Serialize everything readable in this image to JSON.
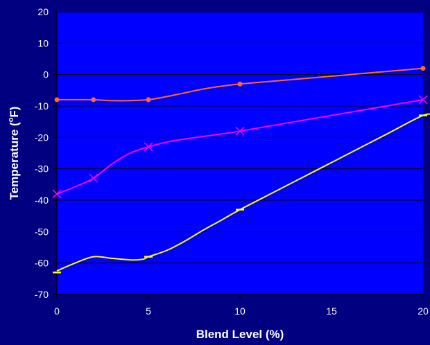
{
  "chart_data": {
    "type": "line",
    "title": "",
    "xlabel": "Blend Level (%)",
    "ylabel_prefix": "Temperature (",
    "ylabel_sup": "o",
    "ylabel_suffix": "F)",
    "xlim": [
      0,
      20
    ],
    "ylim": [
      -70,
      20
    ],
    "x_ticks": [
      0,
      5,
      10,
      15,
      20
    ],
    "y_ticks": [
      20,
      10,
      0,
      -10,
      -20,
      -30,
      -40,
      -50,
      -60,
      -70
    ],
    "grid": "horizontal",
    "legend": "none",
    "colors": {
      "background": "#000080",
      "plot_area": "#0000ff",
      "gridline": "#000000",
      "text": "#ffffff"
    },
    "series": [
      {
        "color": "#ff6a2a",
        "marker": "dot",
        "points": [
          {
            "x": 0,
            "y": -8
          },
          {
            "x": 2,
            "y": -8
          },
          {
            "x": 5,
            "y": -8
          },
          {
            "x": 10,
            "y": -3
          },
          {
            "x": 20,
            "y": 2
          }
        ],
        "curve": [
          [
            0,
            -8
          ],
          [
            1,
            -8
          ],
          [
            2,
            -8
          ],
          [
            3,
            -8.3
          ],
          [
            4,
            -8.3
          ],
          [
            5,
            -8
          ],
          [
            6,
            -7
          ],
          [
            7,
            -5.8
          ],
          [
            8,
            -4.6
          ],
          [
            9,
            -3.7
          ],
          [
            10,
            -3
          ],
          [
            12,
            -2
          ],
          [
            14,
            -1
          ],
          [
            16,
            0
          ],
          [
            18,
            1
          ],
          [
            20,
            2
          ]
        ]
      },
      {
        "color": "#ff00ff",
        "marker": "x",
        "points": [
          {
            "x": 0,
            "y": -38
          },
          {
            "x": 2,
            "y": -33
          },
          {
            "x": 5,
            "y": -23
          },
          {
            "x": 10,
            "y": -18
          },
          {
            "x": 20,
            "y": -8
          }
        ],
        "curve": [
          [
            0,
            -38
          ],
          [
            1,
            -35.7
          ],
          [
            2,
            -33
          ],
          [
            3,
            -28.5
          ],
          [
            4,
            -25
          ],
          [
            5,
            -23
          ],
          [
            6,
            -21.5
          ],
          [
            7,
            -20.5
          ],
          [
            8,
            -19.7
          ],
          [
            9,
            -18.9
          ],
          [
            10,
            -18
          ],
          [
            12,
            -16
          ],
          [
            14,
            -14
          ],
          [
            16,
            -12
          ],
          [
            18,
            -10
          ],
          [
            20,
            -8
          ]
        ]
      },
      {
        "color": "#ffff00",
        "marker": "dash",
        "points": [
          {
            "x": 0,
            "y": -63
          },
          {
            "x": 5,
            "y": -58
          },
          {
            "x": 10,
            "y": -43
          },
          {
            "x": 20,
            "y": -13
          }
        ],
        "curve": [
          [
            0,
            -62.5
          ],
          [
            1,
            -60
          ],
          [
            2,
            -58
          ],
          [
            3,
            -58.5
          ],
          [
            4,
            -59
          ],
          [
            4.7,
            -58.8
          ],
          [
            5,
            -58
          ],
          [
            6,
            -56
          ],
          [
            7,
            -53
          ],
          [
            8,
            -49.5
          ],
          [
            9,
            -46.3
          ],
          [
            10,
            -43
          ],
          [
            12,
            -37
          ],
          [
            14,
            -31
          ],
          [
            16,
            -25
          ],
          [
            18,
            -19
          ],
          [
            20,
            -13
          ],
          [
            20.6,
            -13
          ]
        ]
      }
    ]
  }
}
